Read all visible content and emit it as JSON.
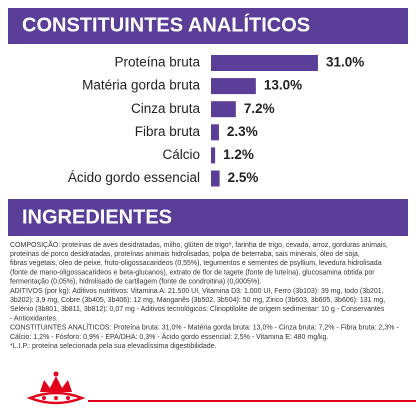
{
  "chart_data": {
    "type": "bar",
    "orientation": "horizontal",
    "title": "CONSTITUINTES ANALÍTICOS",
    "categories": [
      "Proteína bruta",
      "Matéria gorda bruta",
      "Cinza bruta",
      "Fibra bruta",
      "Cálcio",
      "Ácido gordo essencial"
    ],
    "values": [
      31.0,
      13.0,
      7.2,
      2.3,
      1.2,
      2.5
    ],
    "value_labels": [
      "31.0%",
      "13.0%",
      "7.2%",
      "2.3%",
      "1.2%",
      "2.5%"
    ],
    "color": "#5b3e98"
  },
  "ingredients": {
    "title": "INGREDIENTES",
    "lines": [
      "COMPOSIÇÃO: proteínas de aves desidratadas, milho, glúten de trigo*, farinha de trigo, cevada, arroz, gorduras animais,",
      "proteínas de porco desidratadas, proteínas animais hidrolisadas, polpa de beterraba, sais minerais, óleo de soja,",
      "fibras vegetais, óleo de peixe, fruto-oligossacarideos (0,55%), tegumentos e sementes de psyllium, levedura hidrolisada",
      "(fonte de mano-oligossacarideos e beta-glucanos), extrato de flor de tagete (fonte de luteína), glucosamina obtida por",
      "fermentação (0,05%), hidrolisado de cartilagem (fonte de condroitina) (0,0005%).",
      "ADITIVOS (por kg): Aditivos nutritivos: Vitamina A: 21.500 UI, Vitamina D3: 1.000 UI, Ferro (3b103): 39 mg, Iodo (3b201,",
      "3b202): 3,9 mg, Cobre (3b405, 3b406): 12 mg, Manganês (3b502, 3b504): 50 mg, Zinco (3b603, 3b605, 3b606): 131 mg,",
      "Selénio (3b801, 3b811, 3b812): 0,07 mg - Aditivos tecnológicos: Clinoptilolite de origem sedimentar: 10 g - Conservantes",
      "- Antioxidantes.",
      "CONSTITUINTES ANALÍTICOS: Proteína bruta: 31,0% - Matéria gorda bruta: 13,0% - Cinza bruta: 7,2% - Fibra bruta: 2,3% -",
      "Cálcio: 1,2% - Fósforo: 0,9% - EPA/DHA: 0,3% - Ácido gordo essencial: 2,5% - Vitamina E: 480 mg/kg.",
      "*L.I.P.: proteína selecionada pela sua elevadíssima digestibilidade."
    ]
  }
}
